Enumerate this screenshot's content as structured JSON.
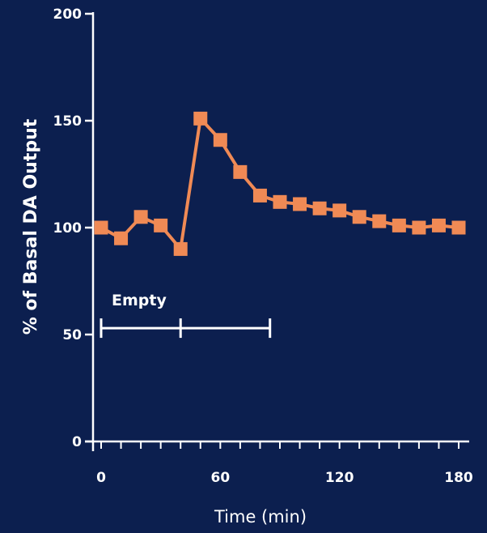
{
  "chart_data": {
    "type": "line",
    "title": "",
    "xlabel": "Time (min)",
    "ylabel": "% of Basal DA Output",
    "xlim": [
      0,
      180
    ],
    "ylim": [
      0,
      200
    ],
    "x_ticks": [
      0,
      60,
      120,
      180
    ],
    "x_tick_labels": [
      "0",
      "60",
      "120",
      "180"
    ],
    "y_ticks": [
      0,
      50,
      100,
      150,
      200
    ],
    "y_tick_labels": [
      "0",
      "50",
      "100",
      "150",
      "200"
    ],
    "grid": false,
    "legend": "none",
    "series": [
      {
        "color": "#f08a55",
        "marker": "square",
        "x": [
          0,
          10,
          20,
          30,
          40,
          50,
          60,
          70,
          80,
          90,
          100,
          110,
          120,
          130,
          140,
          150,
          160,
          170,
          180
        ],
        "y": [
          100,
          95,
          105,
          101,
          90,
          151,
          141,
          126,
          115,
          112,
          111,
          109,
          108,
          105,
          103,
          101,
          100,
          101,
          100
        ]
      }
    ],
    "annotations": [
      {
        "text": "Empty",
        "bar": {
          "x_start": 0,
          "x_mid": 40,
          "x_end": 85,
          "y": 53
        }
      }
    ],
    "colors": {
      "background": "#0c1f4f",
      "axis": "#ffffff",
      "series": "#f08a55"
    }
  }
}
